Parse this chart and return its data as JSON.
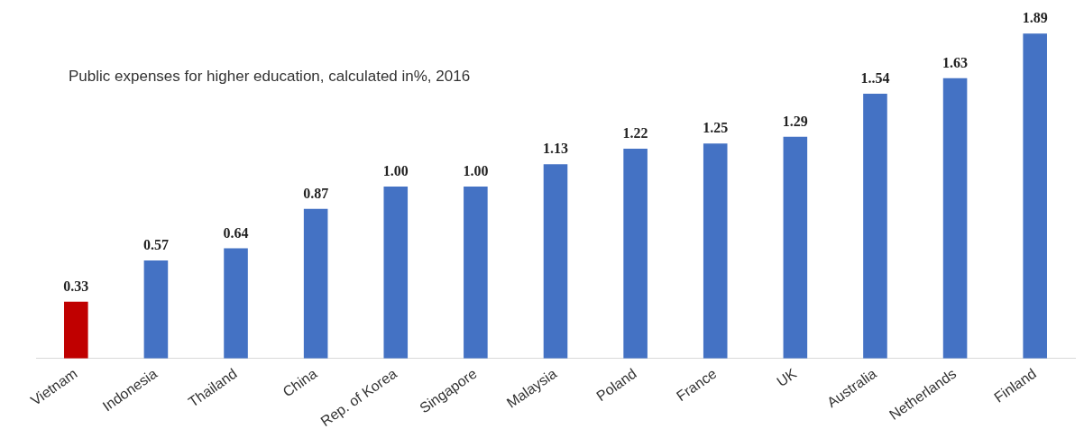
{
  "chart_data": {
    "type": "bar",
    "title": "Public expenses for higher education, calculated in%, 2016",
    "categories": [
      "Vietnam",
      "Indonesia",
      "Thailand",
      "China",
      "Rep. of Korea",
      "Singapore",
      "Malaysia",
      "Poland",
      "France",
      "UK",
      "Australia",
      "Netherlands",
      "Finland"
    ],
    "values": [
      0.33,
      0.57,
      0.64,
      0.87,
      1.0,
      1.0,
      1.13,
      1.22,
      1.25,
      1.29,
      1.54,
      1.63,
      1.89
    ],
    "value_labels": [
      "0.33",
      "0.57",
      "0.64",
      "0.87",
      "1.00",
      "1.00",
      "1.13",
      "1.22",
      "1.25",
      "1.29",
      "1..54",
      "1.63",
      "1.89"
    ],
    "colors": [
      "#c00000",
      "#4472c4",
      "#4472c4",
      "#4472c4",
      "#4472c4",
      "#4472c4",
      "#4472c4",
      "#4472c4",
      "#4472c4",
      "#4472c4",
      "#4472c4",
      "#4472c4",
      "#4472c4"
    ],
    "grid": false,
    "legend": false
  }
}
